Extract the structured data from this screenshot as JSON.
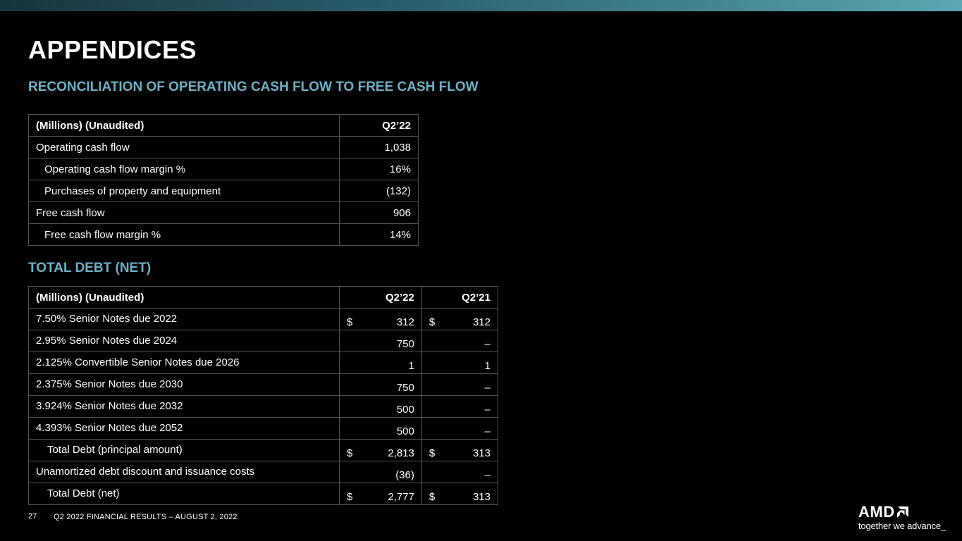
{
  "page": {
    "title": "APPENDICES",
    "section1_title": "RECONCILIATION OF OPERATING CASH FLOW TO FREE CASH FLOW",
    "section2_title": "TOTAL DEBT (NET)"
  },
  "table1": {
    "header": [
      "(Millions) (Unaudited)",
      "Q2’22"
    ],
    "rows": [
      {
        "label": "Operating cash flow",
        "value": "1,038"
      },
      {
        "label": "Operating cash flow margin %",
        "value": "16%"
      },
      {
        "label": "Purchases of property and equipment",
        "value": "(132)"
      },
      {
        "label": "Free cash flow",
        "value": "906"
      },
      {
        "label": "Free cash flow margin %",
        "value": "14%"
      }
    ]
  },
  "table2": {
    "header": [
      "(Millions) (Unaudited)",
      "Q2’22",
      "Q2’21"
    ],
    "rows": [
      {
        "label": "7.50% Senior Notes due 2022",
        "c1_sym": "$",
        "c1": "312",
        "c2_sym": "$",
        "c2": "312"
      },
      {
        "label": "2.95% Senior Notes due 2024",
        "c1_sym": "",
        "c1": "750",
        "c2_sym": "",
        "c2": "–"
      },
      {
        "label": "2.125% Convertible Senior Notes due 2026",
        "c1_sym": "",
        "c1": "1",
        "c2_sym": "",
        "c2": "1"
      },
      {
        "label": "2.375% Senior Notes due 2030",
        "c1_sym": "",
        "c1": "750",
        "c2_sym": "",
        "c2": "–"
      },
      {
        "label": "3.924% Senior Notes due 2032",
        "c1_sym": "",
        "c1": "500",
        "c2_sym": "",
        "c2": "–"
      },
      {
        "label": "4.393% Senior Notes due 2052",
        "c1_sym": "",
        "c1": "500",
        "c2_sym": "",
        "c2": "–"
      },
      {
        "label": "Total Debt (principal amount)",
        "c1_sym": "$",
        "c1": "2,813",
        "c2_sym": "$",
        "c2": "313"
      },
      {
        "label": "Unamortized debt discount and issuance costs",
        "c1_sym": "",
        "c1": "(36)",
        "c2_sym": "",
        "c2": "–"
      },
      {
        "label": "Total Debt (net)",
        "c1_sym": "$",
        "c1": "2,777",
        "c2_sym": "$",
        "c2": "313"
      }
    ]
  },
  "footer": {
    "page_number": "27",
    "text": "Q2 2022 FINANCIAL RESULTS – AUGUST 2, 2022"
  },
  "logo": {
    "wordmark": "AMD",
    "tagline": "together we advance_"
  },
  "colors": {
    "accent": "#6fb0c6",
    "background": "#000000",
    "grid": "#555555"
  }
}
